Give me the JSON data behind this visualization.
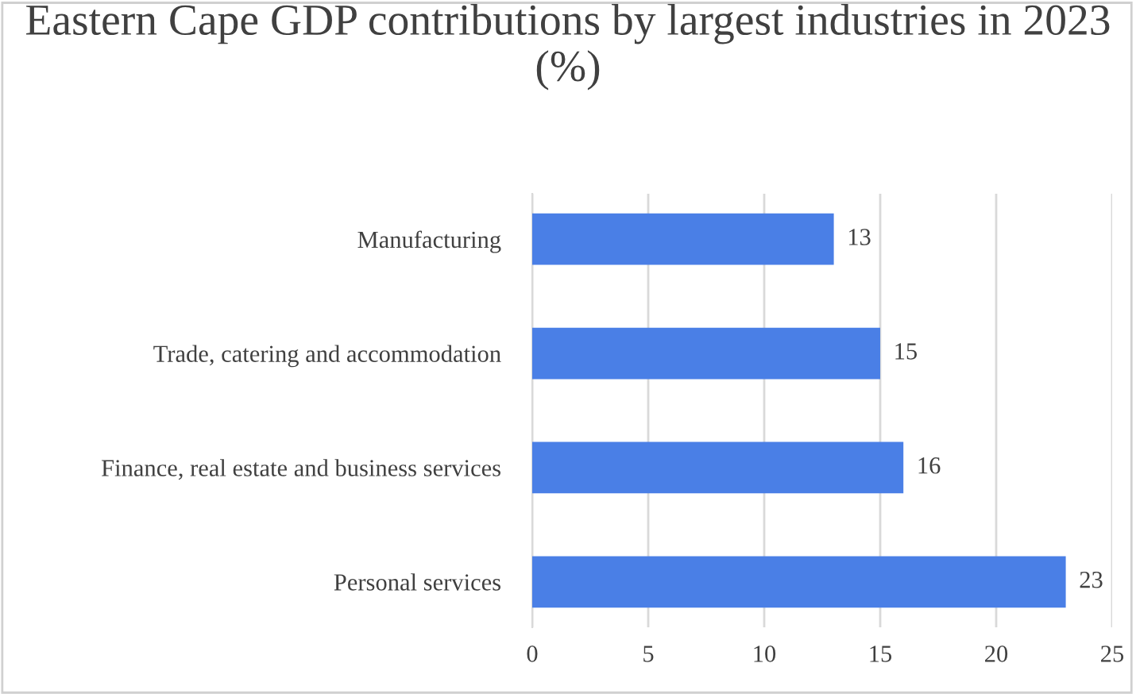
{
  "chart_data": {
    "type": "bar",
    "orientation": "horizontal",
    "title": "Eastern Cape GDP contributions by largest industries in 2023 (%)",
    "categories": [
      "Manufacturing",
      "Trade, catering and accommodation",
      "Finance, real estate and business services",
      "Personal services"
    ],
    "values": [
      13,
      15,
      16,
      23
    ],
    "color": "#4a7fe6",
    "xlim": [
      0,
      25
    ],
    "xticks": [
      0,
      5,
      10,
      15,
      20,
      25
    ],
    "grid": "x",
    "data_labels": true
  }
}
